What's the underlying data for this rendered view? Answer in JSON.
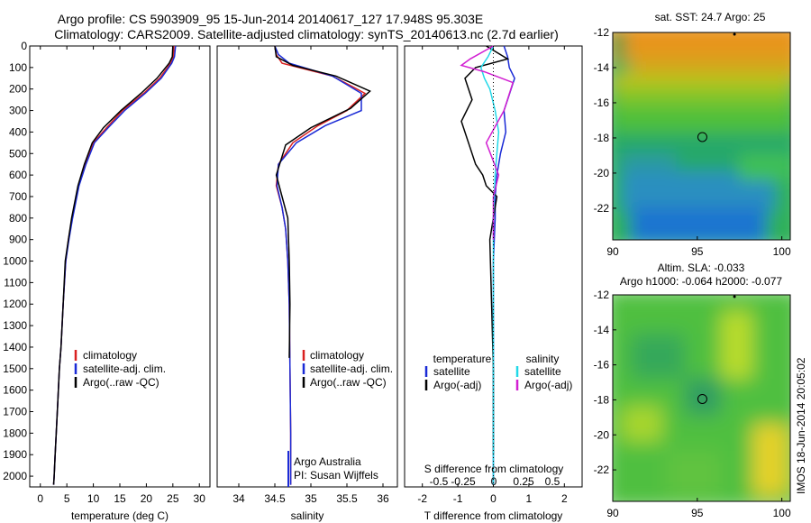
{
  "header": {
    "title_line1": "Argo profile: CS 5903909_95 15-Jun-2014 20140617_127 17.948S 95.303E",
    "title_line2": "Climatology: CARS2009. Satellite-adjusted climatology: synTS_20140613.nc (2.7d earlier)"
  },
  "side_label": "IMOS 18-Jun-2014 20:05:02",
  "colors": {
    "climatology": "#d92020",
    "satellite": "#1a2ad6",
    "argo": "#000000",
    "sal_satellite": "#22d8e8",
    "sal_argo": "#d21fd2"
  },
  "chart_data": [
    {
      "type": "line",
      "name": "temperature-panel",
      "xlabel": "temperature (deg C)",
      "ylim": [
        2050,
        0
      ],
      "xlim": [
        -2,
        32
      ],
      "xticks": [
        0,
        5,
        10,
        15,
        20,
        25,
        30
      ],
      "yticks": [
        0,
        100,
        200,
        300,
        400,
        500,
        600,
        700,
        800,
        900,
        1000,
        1100,
        1200,
        1300,
        1400,
        1500,
        1600,
        1700,
        1800,
        1900,
        2000
      ],
      "legend": [
        "climatology",
        "satellite-adj. clim.",
        "Argo(..raw -QC)"
      ],
      "series": [
        {
          "name": "climatology",
          "color": "#d92020",
          "x": [
            25.2,
            25.1,
            24.6,
            22.5,
            19.5,
            15.5,
            12.5,
            10.0,
            8.5,
            7.2,
            6.0,
            5.3,
            4.8,
            4.3,
            3.9,
            3.6,
            3.3,
            3.0,
            2.8,
            2.6,
            2.5
          ],
          "y": [
            0,
            50,
            80,
            150,
            220,
            300,
            380,
            450,
            550,
            650,
            800,
            900,
            1000,
            1200,
            1400,
            1500,
            1650,
            1800,
            1900,
            2000,
            2040
          ]
        },
        {
          "name": "satellite-adj. clim.",
          "color": "#1a2ad6",
          "x": [
            25.5,
            25.3,
            24.8,
            22.8,
            19.8,
            15.9,
            12.8,
            10.2,
            8.6,
            7.3,
            6.1,
            5.4,
            4.8,
            4.3,
            3.9,
            3.6,
            3.3,
            3.0,
            2.8,
            2.6,
            2.5
          ],
          "y": [
            0,
            50,
            80,
            150,
            220,
            300,
            380,
            450,
            550,
            650,
            800,
            900,
            1000,
            1200,
            1400,
            1500,
            1650,
            1800,
            1900,
            2000,
            2040
          ]
        },
        {
          "name": "Argo(..raw -QC)",
          "color": "#000000",
          "x": [
            25.0,
            24.9,
            24.3,
            22.0,
            19.0,
            15.2,
            11.9,
            9.8,
            8.3,
            7.1,
            5.9,
            5.3,
            4.7,
            4.3,
            3.9,
            3.6,
            3.3,
            3.0,
            2.8,
            2.6,
            2.5
          ],
          "y": [
            0,
            50,
            80,
            150,
            220,
            300,
            380,
            450,
            550,
            650,
            800,
            900,
            1000,
            1200,
            1400,
            1500,
            1650,
            1800,
            1900,
            2000,
            2040
          ]
        }
      ]
    },
    {
      "type": "line",
      "name": "salinity-panel",
      "xlabel": "salinity",
      "ylim": [
        2050,
        0
      ],
      "xlim": [
        33.7,
        36.2
      ],
      "xticks": [
        34,
        34.5,
        35,
        35.5,
        36
      ],
      "legend": [
        "climatology",
        "satellite-adj. clim.",
        "Argo(..raw -QC)"
      ],
      "annotation": [
        "Argo Australia",
        "PI: Susan Wijffels"
      ],
      "series": [
        {
          "name": "climatology",
          "color": "#d92020",
          "x": [
            34.5,
            34.52,
            34.6,
            35.3,
            35.75,
            35.5,
            35.1,
            34.75,
            34.55,
            34.52,
            34.6,
            34.65,
            34.68,
            34.7,
            34.71,
            34.72,
            34.72
          ],
          "y": [
            0,
            40,
            80,
            140,
            220,
            300,
            370,
            450,
            550,
            650,
            750,
            850,
            1000,
            1200,
            1500,
            1800,
            2040
          ]
        },
        {
          "name": "satellite-adj. clim.",
          "color": "#1a2ad6",
          "x": [
            34.5,
            34.55,
            34.7,
            35.3,
            35.7,
            35.7,
            35.2,
            34.8,
            34.55,
            34.53,
            34.6,
            34.65,
            34.68,
            34.7,
            34.71,
            34.72,
            34.72
          ],
          "y": [
            0,
            40,
            80,
            140,
            220,
            300,
            370,
            450,
            550,
            650,
            750,
            850,
            1000,
            1200,
            1500,
            1800,
            2040
          ]
        },
        {
          "name": "Argo(..raw -QC)",
          "color": "#000000",
          "x": [
            34.5,
            34.52,
            34.75,
            35.35,
            35.82,
            35.55,
            35.0,
            34.65,
            34.52,
            34.6,
            34.68,
            34.7,
            34.71,
            34.7
          ],
          "y": [
            0,
            50,
            90,
            140,
            210,
            290,
            380,
            460,
            600,
            700,
            800,
            1000,
            1200,
            1450
          ]
        }
      ]
    },
    {
      "type": "line",
      "name": "difference-panel",
      "xlabel": "T difference from climatology",
      "xlabel_top": "S difference from climatology",
      "ylim": [
        2050,
        0
      ],
      "xlim": [
        -2.5,
        2.5
      ],
      "xticks": [
        -2,
        -1,
        0,
        1,
        2
      ],
      "xticks_top": [
        "-0.5",
        "-0.25",
        "0",
        "0.25",
        "0.5"
      ],
      "legend_headers": [
        "temperature",
        "salinity"
      ],
      "legend": [
        "satellite",
        "Argo(-adj)",
        "satellite",
        "Argo(-adj)"
      ],
      "series": [
        {
          "name": "T satellite",
          "color": "#1a2ad6",
          "x": [
            0.3,
            0.4,
            0.45,
            0.6,
            0.4,
            0.3,
            0.35,
            0.2,
            0.1,
            0.05,
            0.05,
            0,
            0,
            0
          ],
          "y": [
            0,
            50,
            100,
            150,
            250,
            300,
            400,
            500,
            600,
            700,
            800,
            1000,
            1500,
            2040
          ]
        },
        {
          "name": "T Argo(-adj)",
          "color": "#000000",
          "x": [
            -0.2,
            0.4,
            -0.5,
            -0.8,
            -0.6,
            -0.9,
            -0.7,
            -0.5,
            -0.3,
            -0.2,
            0.1,
            -0.1,
            0,
            0
          ],
          "y": [
            0,
            60,
            100,
            150,
            250,
            350,
            450,
            550,
            600,
            650,
            700,
            900,
            1500,
            1900
          ]
        },
        {
          "name": "S satellite",
          "color": "#22d8e8",
          "x": [
            0,
            -0.15,
            -0.35,
            -0.25,
            -0.1,
            0.05,
            0.15,
            0.1,
            0.05,
            0,
            0,
            0
          ],
          "y": [
            0,
            50,
            100,
            150,
            200,
            300,
            400,
            500,
            600,
            800,
            1200,
            2040
          ]
        },
        {
          "name": "S Argo(-adj)",
          "color": "#d21fd2",
          "x": [
            0,
            -0.65,
            -0.9,
            -0.25,
            0.55,
            0.3,
            -0.2,
            0.15,
            0,
            0
          ],
          "y": [
            0,
            60,
            90,
            120,
            170,
            300,
            450,
            600,
            700,
            900
          ]
        }
      ]
    },
    {
      "type": "heatmap",
      "name": "sst-map",
      "title": "sat. SST: 24.7 Argo: 25",
      "xlim": [
        90,
        100.5
      ],
      "ylim": [
        -23.8,
        -12
      ],
      "xticks": [
        90,
        95,
        100
      ],
      "yticks": [
        -12,
        -14,
        -16,
        -18,
        -20,
        -22
      ],
      "marker": {
        "lon": 95.3,
        "lat": -17.95
      }
    },
    {
      "type": "heatmap",
      "name": "sla-map",
      "title": "Altim. SLA: -0.033",
      "subtitle": "Argo h1000: -0.064 h2000: -0.077",
      "xlim": [
        90,
        100.5
      ],
      "ylim": [
        -23.8,
        -12
      ],
      "xticks": [
        90,
        95,
        100
      ],
      "yticks": [
        -12,
        -14,
        -16,
        -18,
        -20,
        -22
      ],
      "marker": {
        "lon": 95.3,
        "lat": -17.95
      }
    }
  ]
}
